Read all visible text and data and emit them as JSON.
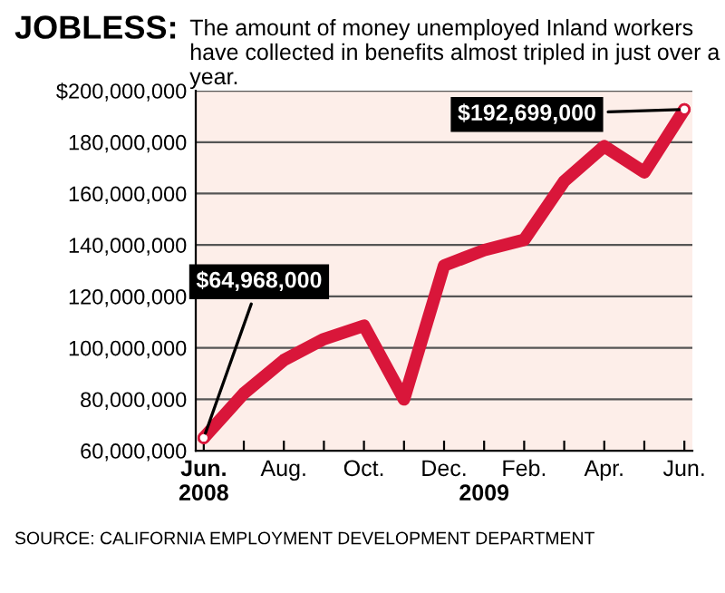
{
  "chart_data": {
    "type": "line",
    "title": "JOBLESS:",
    "subtitle": "The amount of money unemployed Inland workers have collected in benefits almost tripled in just over a year.",
    "categories": [
      "Jun.\n2008",
      null,
      "Aug.",
      null,
      "Oct.",
      null,
      "Dec.",
      "\n2009",
      "Feb.",
      null,
      "Apr.",
      null,
      "Jun."
    ],
    "series": [
      {
        "color": "#d9163a",
        "values": [
          64968000,
          82300000,
          95200000,
          103400000,
          108600000,
          80000000,
          132000000,
          138000000,
          142000000,
          164800000,
          178400000,
          168300000,
          192699000
        ],
        "value_labels": [
          "$64,968,000",
          null,
          null,
          null,
          null,
          null,
          null,
          null,
          null,
          null,
          null,
          null,
          "$192,699,000"
        ]
      }
    ],
    "ylim": [
      60000000,
      200000000
    ],
    "yticks": [
      {
        "value": 60000000,
        "label": "60,000,000"
      },
      {
        "value": 80000000,
        "label": "80,000,000"
      },
      {
        "value": 100000000,
        "label": "100,000,000"
      },
      {
        "value": 120000000,
        "label": "120,000,000"
      },
      {
        "value": 140000000,
        "label": "140,000,000"
      },
      {
        "value": 160000000,
        "label": "160,000,000"
      },
      {
        "value": 180000000,
        "label": "180,000,000"
      },
      {
        "value": 200000000,
        "label": "$200,000,000"
      }
    ],
    "grid": "y",
    "marker": "none",
    "line_style": "solid",
    "annotations": [
      "SOURCE: CALIFORNIA EMPLOYMENT DEVELOPMENT DEPARTMENT"
    ]
  }
}
